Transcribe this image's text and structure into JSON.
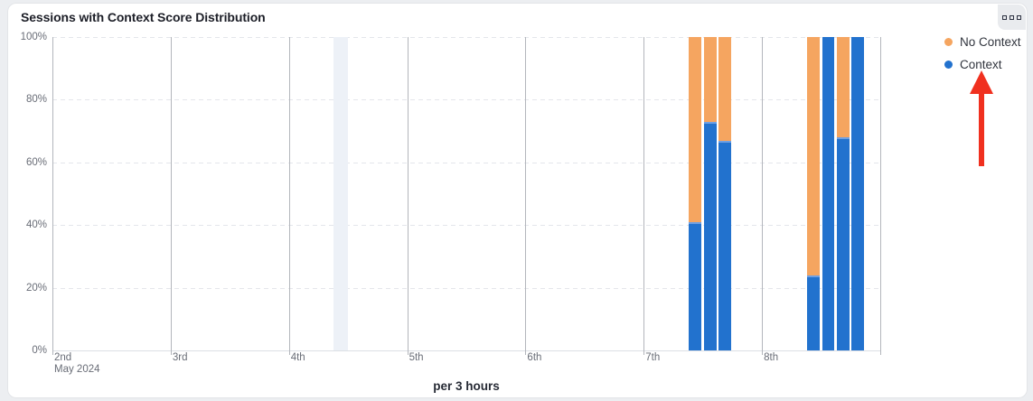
{
  "card": {
    "title": "Sessions with Context Score Distribution"
  },
  "legend": {
    "items": [
      {
        "label": "No Context",
        "color": "#F5A560"
      },
      {
        "label": "Context",
        "color": "#2272CE"
      }
    ]
  },
  "annotation": {
    "type": "red-arrow-up",
    "points_at": "Context legend item",
    "color": "#F0301F"
  },
  "chart_data": {
    "type": "bar",
    "stacked": true,
    "unit": "percent",
    "title": "Sessions with Context Score Distribution",
    "xlabel": "per 3 hours",
    "ylabel": "",
    "ylim": [
      0,
      100
    ],
    "grid": {
      "horizontal": "dashed",
      "vertical": "solid"
    },
    "legend_position": "top-right",
    "y_ticks": [
      {
        "value": 0,
        "label": "0%"
      },
      {
        "value": 20,
        "label": "20%"
      },
      {
        "value": 40,
        "label": "40%"
      },
      {
        "value": 60,
        "label": "60%"
      },
      {
        "value": 80,
        "label": "80%"
      },
      {
        "value": 100,
        "label": "100%"
      }
    ],
    "x_axis": {
      "tick_labels": [
        "2nd",
        "3rd",
        "4th",
        "5th",
        "6th",
        "7th",
        "8th"
      ],
      "first_tick_sublabel": "May 2024",
      "slot_hours": 3,
      "slots_total": 56,
      "days_shown": 7
    },
    "series": [
      {
        "name": "Context",
        "color": "#2272CE",
        "edge_color": "#6FA0E3"
      },
      {
        "name": "No Context",
        "color": "#F5A560"
      }
    ],
    "bars": [
      {
        "time": "May 7 09:00-12:00",
        "slot": 43,
        "context_pct": 41,
        "no_context_pct": 59
      },
      {
        "time": "May 7 12:00-15:00",
        "slot": 44,
        "context_pct": 73,
        "no_context_pct": 27
      },
      {
        "time": "May 7 15:00-18:00",
        "slot": 45,
        "context_pct": 67,
        "no_context_pct": 33
      },
      {
        "time": "May 8 09:00-12:00",
        "slot": 51,
        "context_pct": 24,
        "no_context_pct": 76
      },
      {
        "time": "May 8 12:00-15:00",
        "slot": 52,
        "context_pct": 100,
        "no_context_pct": 0
      },
      {
        "time": "May 8 15:00-18:00",
        "slot": 53,
        "context_pct": 68,
        "no_context_pct": 32
      },
      {
        "time": "May 8 18:00-21:00",
        "slot": 54,
        "context_pct": 100,
        "no_context_pct": 0
      }
    ],
    "highlight_band": {
      "time": "May 4 09:00-12:00",
      "slot": 19,
      "color": "#EDF1F7"
    }
  }
}
